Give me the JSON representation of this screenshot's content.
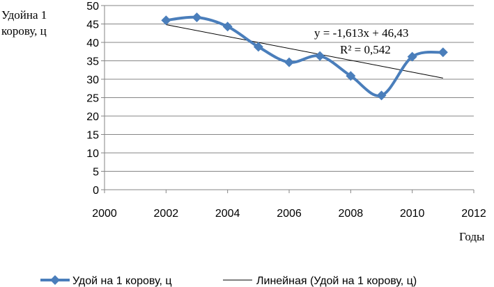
{
  "chart_data": {
    "type": "line",
    "ylabel_lines": [
      "Удойна 1",
      "корову, ц"
    ],
    "xlabel": "Годы",
    "xlim": [
      2000,
      2012
    ],
    "ylim": [
      0,
      50
    ],
    "xticks": [
      2000,
      2002,
      2004,
      2006,
      2008,
      2010,
      2012
    ],
    "yticks": [
      0,
      5,
      10,
      15,
      20,
      25,
      30,
      35,
      40,
      45,
      50
    ],
    "grid": "horizontal",
    "legend_position": "bottom",
    "series": [
      {
        "name": "Удой на 1 корову, ц",
        "x": [
          2002,
          2003,
          2004,
          2005,
          2006,
          2007,
          2008,
          2009,
          2010,
          2011
        ],
        "y": [
          46.0,
          46.8,
          44.3,
          38.8,
          34.6,
          36.3,
          30.9,
          25.6,
          36.1,
          37.3
        ],
        "color": "#4a7ebb",
        "marker": "diamond",
        "smooth": true
      },
      {
        "name": "Линейная (Удой на 1 корову, ц)",
        "type": "trendline",
        "x": [
          2002,
          2011
        ],
        "y": [
          44.817,
          30.3
        ],
        "color": "#000000"
      }
    ],
    "annotations": {
      "equation": "y = -1,613x + 46,43",
      "r2_label": "R² = 0,542"
    }
  }
}
